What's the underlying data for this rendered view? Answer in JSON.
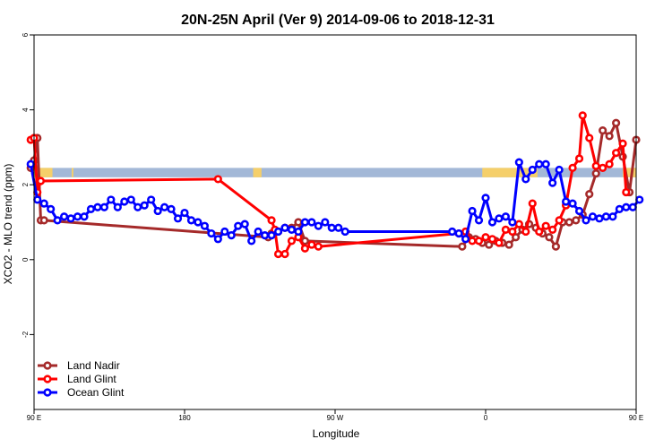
{
  "chart_data": {
    "type": "line",
    "title": "20N-25N April (Ver 9)   2014-09-06 to 2018-12-31",
    "xlabel": "Longitude",
    "ylabel": "XCO2 - MLO trend (ppm)",
    "xlim": [
      90,
      450
    ],
    "ylim": [
      -4,
      6
    ],
    "x_ticks": [
      {
        "value": 90,
        "label": "90 E"
      },
      {
        "value": 180,
        "label": "180"
      },
      {
        "value": 270,
        "label": "90 W"
      },
      {
        "value": 360,
        "label": "0"
      },
      {
        "value": 450,
        "label": "90 E"
      },
      {
        "value": 540,
        "label": "180"
      }
    ],
    "y_ticks": [
      {
        "value": -2,
        "label": "-2"
      },
      {
        "value": 0,
        "label": "0"
      },
      {
        "value": 2,
        "label": "2"
      },
      {
        "value": 4,
        "label": "4"
      },
      {
        "value": 6,
        "label": "6"
      }
    ],
    "land_band": {
      "y_range": [
        2.2,
        2.45
      ],
      "ocean_color": "#a3b8d7",
      "land_color": "#f5cf6a",
      "land_segments": [
        [
          78.5,
          101
        ],
        [
          112.5,
          113.5
        ],
        [
          221,
          226
        ],
        [
          358,
          391
        ],
        [
          442,
          460
        ],
        [
          476,
          477
        ]
      ]
    },
    "legend_position": "bottom-left",
    "series": [
      {
        "name": "Land Nadir",
        "color": "#a52a2a",
        "points": [
          [
            76,
            3.7
          ],
          [
            78,
            2.45
          ],
          [
            80,
            2.75
          ],
          [
            82,
            2.55
          ],
          [
            84,
            1.8
          ],
          [
            86,
            2.55
          ],
          [
            88,
            2.45
          ],
          [
            90,
            2.65
          ],
          [
            92,
            3.25
          ],
          [
            94,
            1.05
          ],
          [
            96,
            1.05
          ],
          [
            230,
            0.6
          ],
          [
            232,
            0.7
          ],
          [
            236,
            0.75
          ],
          [
            240,
            0.85
          ],
          [
            244,
            0.85
          ],
          [
            248,
            1.0
          ],
          [
            252,
            0.5
          ],
          [
            346,
            0.35
          ],
          [
            350,
            0.6
          ],
          [
            354,
            0.55
          ],
          [
            358,
            0.45
          ],
          [
            362,
            0.4
          ],
          [
            366,
            0.5
          ],
          [
            370,
            0.45
          ],
          [
            374,
            0.4
          ],
          [
            378,
            0.6
          ],
          [
            382,
            0.8
          ],
          [
            386,
            0.95
          ],
          [
            390,
            0.85
          ],
          [
            394,
            0.7
          ],
          [
            398,
            0.6
          ],
          [
            402,
            0.35
          ],
          [
            406,
            1.0
          ],
          [
            410,
            1.0
          ],
          [
            414,
            1.05
          ],
          [
            418,
            1.2
          ],
          [
            422,
            1.75
          ],
          [
            426,
            2.3
          ],
          [
            430,
            3.45
          ],
          [
            434,
            3.3
          ],
          [
            438,
            3.65
          ],
          [
            442,
            2.75
          ],
          [
            446,
            1.8
          ],
          [
            450,
            3.2
          ],
          [
            454,
            2.95
          ],
          [
            456,
            1.05
          ]
        ]
      },
      {
        "name": "Land Glint",
        "color": "#ff0000",
        "points": [
          [
            78,
            2.4
          ],
          [
            80,
            2.6
          ],
          [
            82,
            2.4
          ],
          [
            84,
            2.55
          ],
          [
            86,
            2.85
          ],
          [
            88,
            3.2
          ],
          [
            90,
            3.25
          ],
          [
            92,
            1.8
          ],
          [
            94,
            2.1
          ],
          [
            200,
            2.15
          ],
          [
            232,
            1.05
          ],
          [
            234,
            0.8
          ],
          [
            236,
            0.15
          ],
          [
            240,
            0.15
          ],
          [
            244,
            0.5
          ],
          [
            248,
            0.6
          ],
          [
            252,
            0.3
          ],
          [
            256,
            0.4
          ],
          [
            260,
            0.35
          ],
          [
            344,
            0.7
          ],
          [
            348,
            0.75
          ],
          [
            352,
            0.5
          ],
          [
            356,
            0.5
          ],
          [
            360,
            0.6
          ],
          [
            364,
            0.55
          ],
          [
            368,
            0.45
          ],
          [
            372,
            0.8
          ],
          [
            376,
            0.75
          ],
          [
            380,
            0.95
          ],
          [
            384,
            0.75
          ],
          [
            388,
            1.5
          ],
          [
            392,
            0.75
          ],
          [
            396,
            0.9
          ],
          [
            400,
            0.8
          ],
          [
            404,
            1.05
          ],
          [
            408,
            1.45
          ],
          [
            412,
            2.45
          ],
          [
            416,
            2.7
          ],
          [
            418,
            3.85
          ],
          [
            422,
            3.25
          ],
          [
            426,
            2.5
          ],
          [
            430,
            2.45
          ],
          [
            434,
            2.55
          ],
          [
            438,
            2.85
          ],
          [
            442,
            3.1
          ],
          [
            444,
            1.8
          ]
        ]
      },
      {
        "name": "Ocean Glint",
        "color": "#0000ff",
        "points": [
          [
            76,
            2.15
          ],
          [
            80,
            2.05
          ],
          [
            84,
            2.05
          ],
          [
            86,
            2.45
          ],
          [
            88,
            2.55
          ],
          [
            92,
            1.6
          ],
          [
            96,
            1.5
          ],
          [
            100,
            1.35
          ],
          [
            104,
            1.05
          ],
          [
            108,
            1.15
          ],
          [
            112,
            1.1
          ],
          [
            116,
            1.15
          ],
          [
            120,
            1.15
          ],
          [
            124,
            1.35
          ],
          [
            128,
            1.4
          ],
          [
            132,
            1.4
          ],
          [
            136,
            1.6
          ],
          [
            140,
            1.4
          ],
          [
            144,
            1.55
          ],
          [
            148,
            1.6
          ],
          [
            152,
            1.4
          ],
          [
            156,
            1.45
          ],
          [
            160,
            1.6
          ],
          [
            164,
            1.3
          ],
          [
            168,
            1.4
          ],
          [
            172,
            1.35
          ],
          [
            176,
            1.1
          ],
          [
            180,
            1.25
          ],
          [
            184,
            1.05
          ],
          [
            188,
            1.0
          ],
          [
            192,
            0.9
          ],
          [
            196,
            0.7
          ],
          [
            200,
            0.55
          ],
          [
            204,
            0.75
          ],
          [
            208,
            0.65
          ],
          [
            212,
            0.9
          ],
          [
            216,
            0.95
          ],
          [
            220,
            0.5
          ],
          [
            224,
            0.75
          ],
          [
            228,
            0.65
          ],
          [
            232,
            0.65
          ],
          [
            236,
            0.75
          ],
          [
            240,
            0.85
          ],
          [
            244,
            0.8
          ],
          [
            248,
            0.75
          ],
          [
            252,
            1.0
          ],
          [
            256,
            1.0
          ],
          [
            260,
            0.9
          ],
          [
            264,
            1.0
          ],
          [
            268,
            0.85
          ],
          [
            272,
            0.85
          ],
          [
            276,
            0.75
          ],
          [
            340,
            0.75
          ],
          [
            344,
            0.7
          ],
          [
            348,
            0.55
          ],
          [
            352,
            1.3
          ],
          [
            356,
            1.05
          ],
          [
            360,
            1.65
          ],
          [
            364,
            1.0
          ],
          [
            368,
            1.1
          ],
          [
            372,
            1.15
          ],
          [
            376,
            1.0
          ],
          [
            380,
            2.6
          ],
          [
            384,
            2.15
          ],
          [
            388,
            2.4
          ],
          [
            392,
            2.55
          ],
          [
            396,
            2.55
          ],
          [
            400,
            2.05
          ],
          [
            404,
            2.4
          ],
          [
            408,
            1.55
          ],
          [
            412,
            1.5
          ],
          [
            416,
            1.3
          ],
          [
            420,
            1.05
          ],
          [
            424,
            1.15
          ],
          [
            428,
            1.1
          ],
          [
            432,
            1.15
          ],
          [
            436,
            1.15
          ],
          [
            440,
            1.35
          ],
          [
            444,
            1.4
          ],
          [
            448,
            1.4
          ],
          [
            452,
            1.6
          ]
        ]
      }
    ]
  }
}
